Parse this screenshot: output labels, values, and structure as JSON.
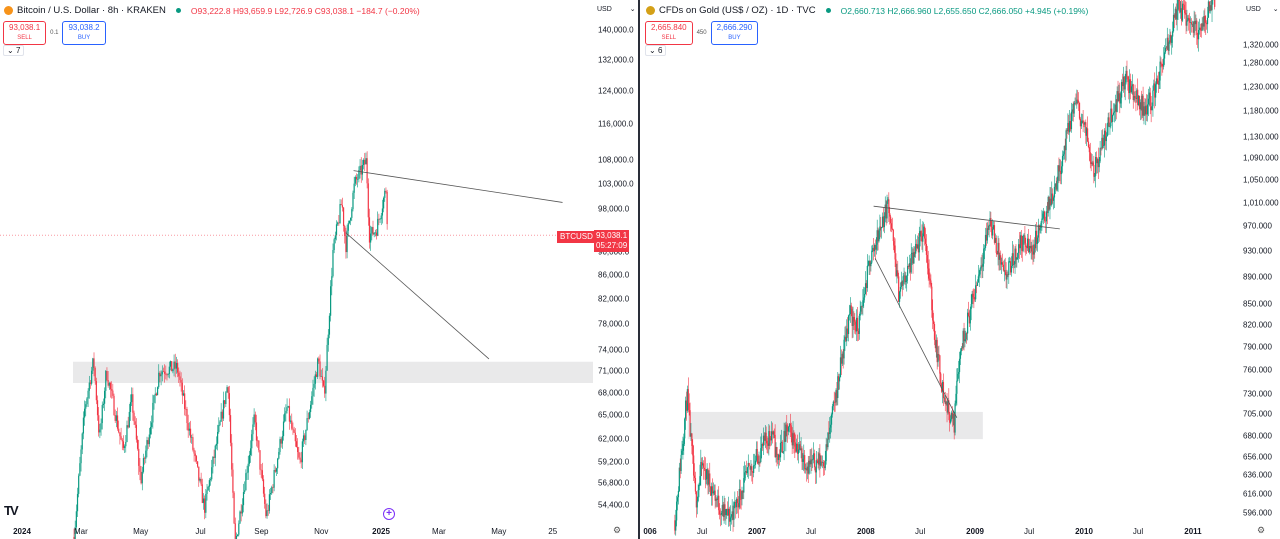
{
  "colors": {
    "up": "#089981",
    "down": "#f23645",
    "zone": "#e9e9ea",
    "trendline": "#555555",
    "buy": "#2962ff",
    "sell": "#f23645",
    "btc_logo": "#f7931a",
    "gold_logo": "#d4a017"
  },
  "left": {
    "symbol_icon": "bitcoin-icon",
    "title": "Bitcoin / U.S. Dollar · 8h · KRAKEN",
    "ohlc": {
      "o": "O93,222.8",
      "h": "H93,659.9",
      "l": "L92,726.9",
      "c": "C93,038.1",
      "chg": "−184.7 (−0.20%)"
    },
    "sell": {
      "price": "93,038.1",
      "label": "SELL"
    },
    "spread": "0.1",
    "buy": {
      "price": "93,038.2",
      "label": "BUY"
    },
    "indicators_toggle": "7",
    "currency": "USD",
    "price_tag": {
      "symbol": "BTCUSD",
      "price": "93,038.1",
      "countdown": "05:27:09"
    },
    "logo": "TV",
    "goto_icon": "+"
  },
  "right": {
    "symbol_icon": "gold-icon",
    "title": "CFDs on Gold (US$ / OZ) · 1D · TVC",
    "ohlc": {
      "o": "O2,660.713",
      "h": "H2,666.960",
      "l": "L2,655.650",
      "c": "C2,666.050",
      "chg": "+4.945 (+0.19%)"
    },
    "sell": {
      "price": "2,665.840",
      "label": "SELL"
    },
    "spread": "450",
    "buy": {
      "price": "2,666.290",
      "label": "BUY"
    },
    "indicators_toggle": "6",
    "currency": "USD"
  },
  "chart_data": [
    {
      "type": "candlestick",
      "symbol": "BTCUSD",
      "interval": "8h",
      "scale": "log",
      "y_ticks": [
        "140,000.0",
        "132,000.0",
        "124,000.0",
        "116,000.0",
        "108,000.0",
        "103,000.0",
        "98,000.0",
        "90,000.0",
        "86,000.0",
        "82,000.0",
        "78,000.0",
        "74,000.0",
        "71,000.0",
        "68,000.0",
        "65,000.0",
        "62,000.0",
        "59,200.0",
        "56,800.0",
        "54,400.0"
      ],
      "x_ticks": [
        {
          "label": "2024",
          "date": "2024-01-01",
          "bold": true
        },
        {
          "label": "Mar",
          "date": "2024-03-01"
        },
        {
          "label": "May",
          "date": "2024-05-01"
        },
        {
          "label": "Jul",
          "date": "2024-07-01"
        },
        {
          "label": "Sep",
          "date": "2024-09-01"
        },
        {
          "label": "Nov",
          "date": "2024-11-01"
        },
        {
          "label": "2025",
          "date": "2025-01-01",
          "bold": true
        },
        {
          "label": "Mar",
          "date": "2025-03-01"
        },
        {
          "label": "May",
          "date": "2025-05-01"
        },
        {
          "label": "25",
          "date": "2025-06-25"
        }
      ],
      "approx_path": [
        [
          "2024-02-23",
          51000
        ],
        [
          "2024-03-05",
          66000
        ],
        [
          "2024-03-14",
          72500
        ],
        [
          "2024-03-20",
          62000
        ],
        [
          "2024-03-27",
          71000
        ],
        [
          "2024-04-13",
          60500
        ],
        [
          "2024-04-22",
          67000
        ],
        [
          "2024-05-01",
          57000
        ],
        [
          "2024-05-20",
          71000
        ],
        [
          "2024-06-07",
          71500
        ],
        [
          "2024-07-05",
          54000
        ],
        [
          "2024-07-29",
          69500
        ],
        [
          "2024-08-05",
          50000
        ],
        [
          "2024-08-25",
          64500
        ],
        [
          "2024-09-06",
          53000
        ],
        [
          "2024-09-27",
          66000
        ],
        [
          "2024-10-10",
          59000
        ],
        [
          "2024-10-29",
          72500
        ],
        [
          "2024-11-04",
          67500
        ],
        [
          "2024-11-13",
          90000
        ],
        [
          "2024-11-22",
          99500
        ],
        [
          "2024-11-26",
          91000
        ],
        [
          "2024-12-05",
          103000
        ],
        [
          "2024-12-17",
          108000
        ],
        [
          "2024-12-20",
          93000
        ],
        [
          "2024-12-27",
          94000
        ],
        [
          "2025-01-06",
          102000
        ],
        [
          "2025-01-08",
          93038
        ]
      ],
      "last_price": 93038.1,
      "trendlines": [
        [
          [
            "2024-12-04",
            105800
          ],
          [
            "2025-07-05",
            99300
          ]
        ],
        [
          [
            "2024-11-26",
            93500
          ],
          [
            "2025-04-21",
            72700
          ]
        ]
      ],
      "zones": [
        {
          "from": "2024-02-22",
          "top": 72300,
          "bottom": 69300
        }
      ]
    },
    {
      "type": "candlestick",
      "symbol": "GOLD",
      "interval": "1D",
      "scale": "log",
      "y_ticks": [
        "1,320.000",
        "1,280.000",
        "1,230.000",
        "1,180.000",
        "1,130.000",
        "1,090.000",
        "1,050.000",
        "1,010.000",
        "970.000",
        "930.000",
        "890.000",
        "850.000",
        "820.000",
        "790.000",
        "760.000",
        "730.000",
        "705.000",
        "680.000",
        "656.000",
        "636.000",
        "616.000",
        "596.000"
      ],
      "x_ticks": [
        {
          "label": "006",
          "date": "2006-01-01",
          "bold": true
        },
        {
          "label": "Jul",
          "date": "2006-07-01"
        },
        {
          "label": "2007",
          "date": "2007-01-01",
          "bold": true
        },
        {
          "label": "Jul",
          "date": "2007-07-01"
        },
        {
          "label": "2008",
          "date": "2008-01-01",
          "bold": true
        },
        {
          "label": "Jul",
          "date": "2008-07-01"
        },
        {
          "label": "2009",
          "date": "2009-01-01",
          "bold": true
        },
        {
          "label": "Jul",
          "date": "2009-07-01"
        },
        {
          "label": "2010",
          "date": "2010-01-01",
          "bold": true
        },
        {
          "label": "Jul",
          "date": "2010-07-01"
        },
        {
          "label": "2011",
          "date": "2011-01-01",
          "bold": true
        }
      ],
      "approx_path": [
        [
          "2006-04-01",
          589
        ],
        [
          "2006-05-12",
          729
        ],
        [
          "2006-06-10",
          608
        ],
        [
          "2006-07-01",
          647
        ],
        [
          "2006-09-05",
          598
        ],
        [
          "2006-10-05",
          592
        ],
        [
          "2006-12-01",
          637
        ],
        [
          "2007-02-20",
          686
        ],
        [
          "2007-03-10",
          653
        ],
        [
          "2007-04-15",
          688
        ],
        [
          "2007-06-20",
          647
        ],
        [
          "2007-08-15",
          653
        ],
        [
          "2007-09-20",
          723
        ],
        [
          "2007-11-08",
          839
        ],
        [
          "2007-12-05",
          813
        ],
        [
          "2008-01-15",
          916
        ],
        [
          "2008-03-17",
          1012
        ],
        [
          "2008-04-20",
          867
        ],
        [
          "2008-05-20",
          898
        ],
        [
          "2008-06-20",
          932
        ],
        [
          "2008-07-15",
          967
        ],
        [
          "2008-08-20",
          801
        ],
        [
          "2008-09-20",
          723
        ],
        [
          "2008-10-24",
          692
        ],
        [
          "2008-10-30",
          749
        ],
        [
          "2008-11-20",
          801
        ],
        [
          "2008-12-25",
          855
        ],
        [
          "2009-02-20",
          982
        ],
        [
          "2009-04-10",
          886
        ],
        [
          "2009-06-05",
          946
        ],
        [
          "2009-07-10",
          932
        ],
        [
          "2009-09-10",
          1012
        ],
        [
          "2009-10-10",
          1067
        ],
        [
          "2009-12-03",
          1202
        ],
        [
          "2010-01-10",
          1130
        ],
        [
          "2010-02-05",
          1067
        ],
        [
          "2010-04-10",
          1186
        ],
        [
          "2010-05-20",
          1244
        ],
        [
          "2010-07-20",
          1186
        ],
        [
          "2010-08-15",
          1202
        ],
        [
          "2010-10-15",
          1331
        ],
        [
          "2010-11-10",
          1411
        ],
        [
          "2011-01-28",
          1343
        ],
        [
          "2011-02-25",
          1411
        ],
        [
          "2011-03-15",
          1427
        ]
      ],
      "trendlines": [
        [
          [
            "2008-01-27",
            1004
          ],
          [
            "2009-10-12",
            966
          ]
        ],
        [
          [
            "2008-02-01",
            919
          ],
          [
            "2008-11-01",
            701
          ]
        ]
      ],
      "zones": [
        {
          "from": "2006-05-14",
          "to": "2009-01-27",
          "top": 708,
          "bottom": 676
        }
      ]
    }
  ]
}
